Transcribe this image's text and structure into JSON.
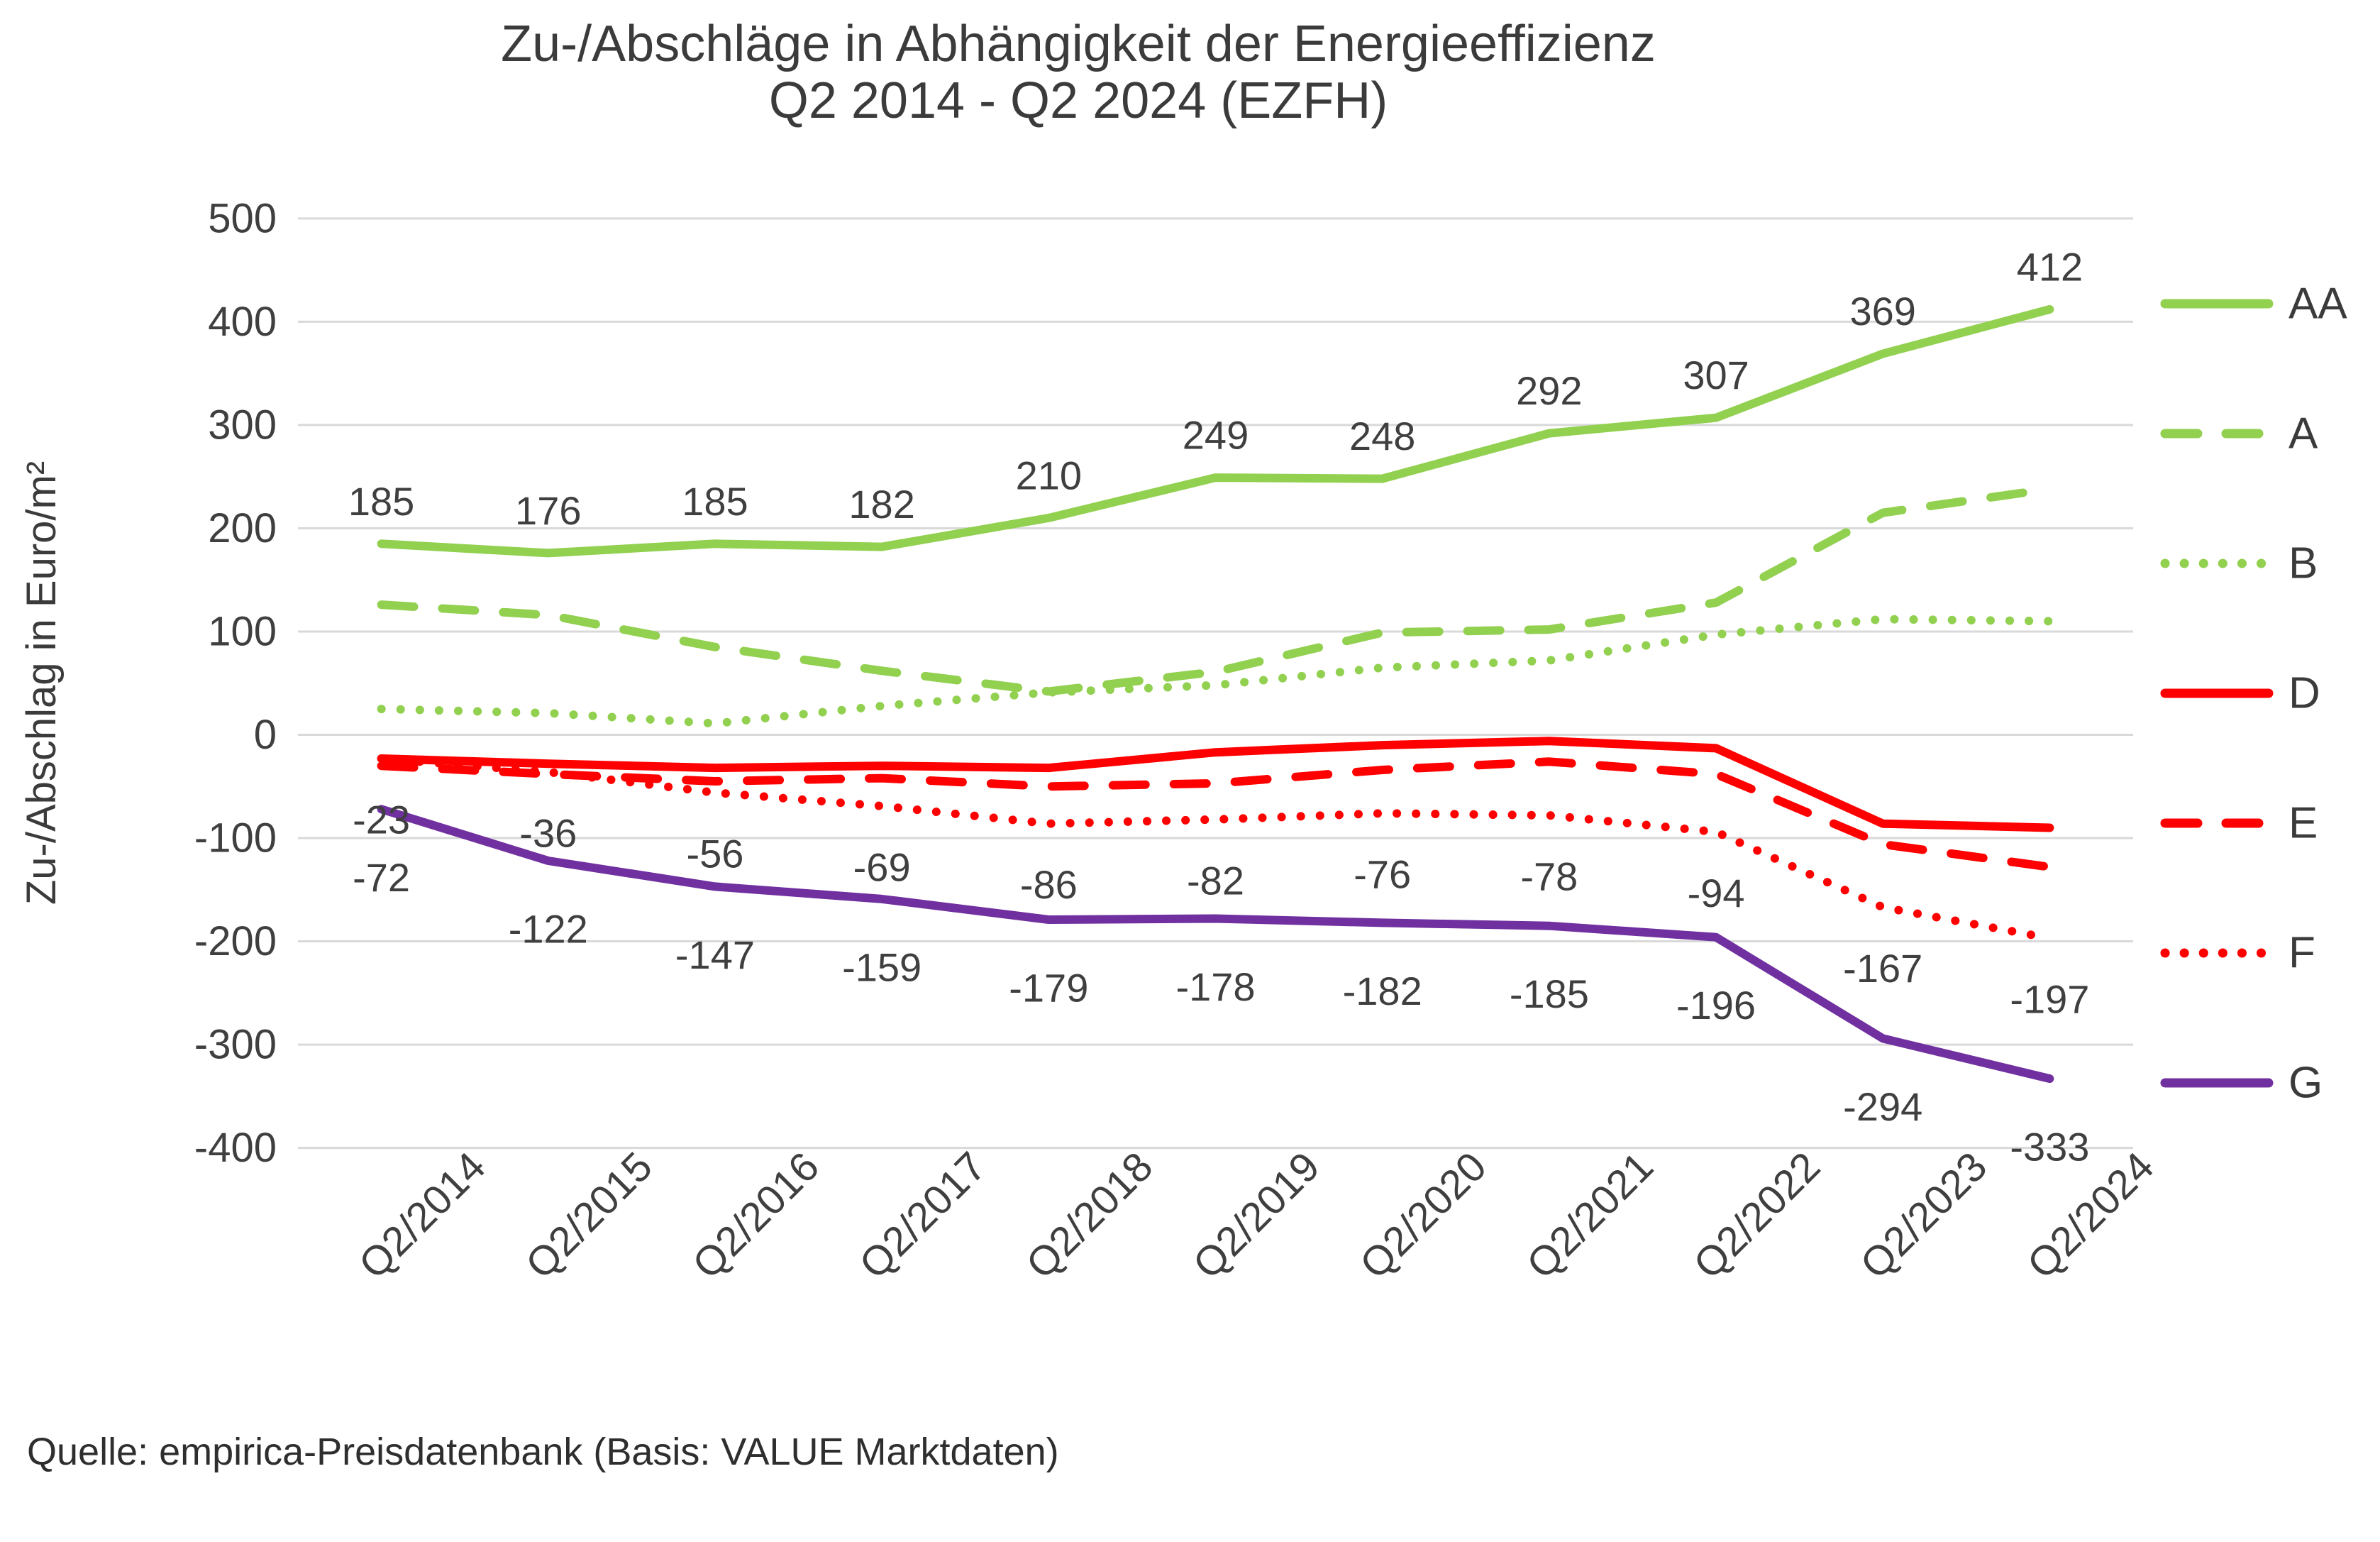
{
  "title": {
    "line1": "Zu-/Abschläge in Abhängigkeit der Energieeffizienz",
    "line2": "Q2 2014 - Q2 2024 (EZFH)"
  },
  "source": {
    "text": "Quelle: empirica-Preisdatenbank (Basis: VALUE Marktdaten)"
  },
  "colors": {
    "green": "#92d050",
    "red": "#ff0000",
    "purple": "#7030a0",
    "gridline": "#d9d9d9",
    "text": "#3f3f3f"
  },
  "chart_data": {
    "type": "line",
    "title": "Zu-/Abschläge in Abhängigkeit der Energieeffizienz Q2 2014 - Q2 2024 (EZFH)",
    "xlabel": "",
    "ylabel": "Zu-/Abschlag in Euro/m²",
    "ylim": [
      -400,
      500
    ],
    "ytick_step": 100,
    "grid": true,
    "legend_position": "right",
    "categories": [
      "Q2/2014",
      "Q2/2015",
      "Q2/2016",
      "Q2/2017",
      "Q2/2018",
      "Q2/2019",
      "Q2/2020",
      "Q2/2021",
      "Q2/2022",
      "Q2/2023",
      "Q2/2024"
    ],
    "series": [
      {
        "name": "AA",
        "color": "#92d050",
        "style": "solid",
        "labels": "above",
        "values": [
          185,
          176,
          185,
          182,
          210,
          249,
          248,
          292,
          307,
          369,
          412
        ]
      },
      {
        "name": "A",
        "color": "#92d050",
        "style": "dashed",
        "labels": "none",
        "values": [
          126,
          116,
          85,
          62,
          42,
          61,
          99,
          102,
          128,
          215,
          238
        ]
      },
      {
        "name": "B",
        "color": "#92d050",
        "style": "dotted",
        "labels": "none",
        "values": [
          25,
          21,
          11,
          28,
          41,
          48,
          65,
          72,
          97,
          112,
          110
        ]
      },
      {
        "name": "D",
        "color": "#ff0000",
        "style": "solid",
        "labels": "none",
        "values": [
          -23,
          -28,
          -32,
          -30,
          -32,
          -17,
          -10,
          -6,
          -13,
          -86,
          -90
        ]
      },
      {
        "name": "E",
        "color": "#ff0000",
        "style": "dashed",
        "labels": "none",
        "values": [
          -30,
          -38,
          -45,
          -42,
          -50,
          -47,
          -34,
          -26,
          -38,
          -106,
          -128
        ]
      },
      {
        "name": "F",
        "color": "#ff0000",
        "style": "dotted",
        "labels": "below",
        "values": [
          -23,
          -36,
          -56,
          -69,
          -86,
          -82,
          -76,
          -78,
          -94,
          -167,
          -197
        ]
      },
      {
        "name": "G",
        "color": "#7030a0",
        "style": "solid",
        "labels": "below",
        "values": [
          -72,
          -122,
          -147,
          -159,
          -179,
          -178,
          -182,
          -185,
          -196,
          -294,
          -333
        ]
      }
    ]
  }
}
